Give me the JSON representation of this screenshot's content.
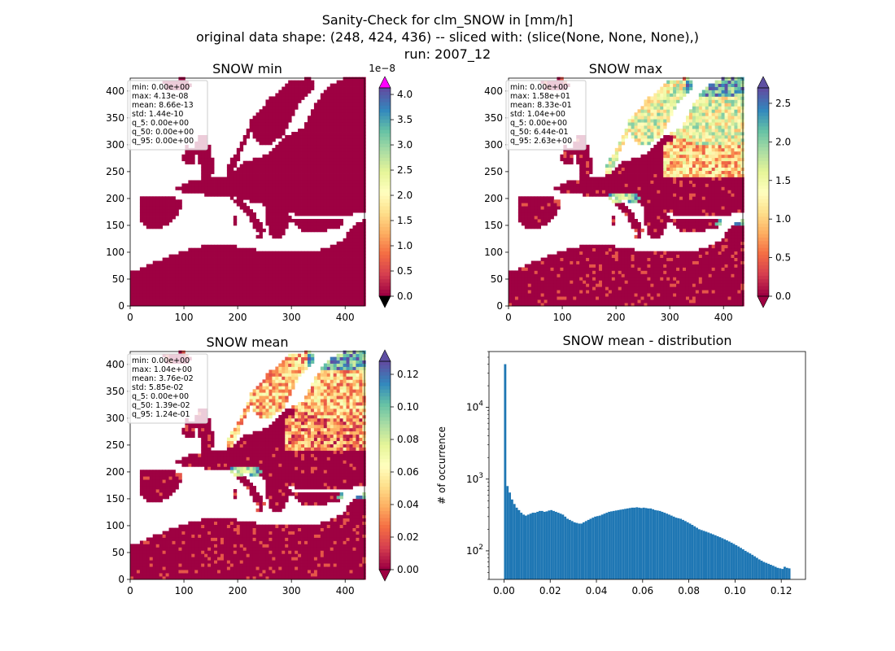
{
  "figure": {
    "title_lines": [
      "Sanity-Check for clm_SNOW in [mm/h]",
      "original data shape: (248, 424, 436) -- sliced with: (slice(None, None, None),)",
      "run: 2007_12"
    ]
  },
  "chart_data": [
    {
      "type": "heatmap",
      "title": "SNOW min",
      "xticks": [
        0,
        100,
        200,
        300,
        400
      ],
      "yticks": [
        0,
        50,
        100,
        150,
        200,
        250,
        300,
        350,
        400
      ],
      "xlim": [
        0,
        436
      ],
      "ylim": [
        0,
        424
      ],
      "colormap": "Spectral",
      "colorbar": {
        "ticks": [
          "0.0",
          "0.5",
          "1.0",
          "1.5",
          "2.0",
          "2.5",
          "3.0",
          "3.5",
          "4.0"
        ],
        "tick_values": [
          0,
          0.5,
          1,
          1.5,
          2,
          2.5,
          3,
          3.5,
          4
        ],
        "range": [
          0,
          4.13
        ],
        "offset_label": "1e−8",
        "extend": "both",
        "over_color": "#ff00ff",
        "under_color": "#000000"
      },
      "stats": [
        "min: 0.00e+00",
        "max: 4.13e-08",
        "mean: 8.66e-13",
        "std: 1.44e-10",
        "q_5: 0.00e+00",
        "q_50: 0.00e+00",
        "q_95: 0.00e+00"
      ]
    },
    {
      "type": "heatmap",
      "title": "SNOW max",
      "xticks": [
        0,
        100,
        200,
        300,
        400
      ],
      "yticks": [
        0,
        50,
        100,
        150,
        200,
        250,
        300,
        350,
        400
      ],
      "xlim": [
        0,
        436
      ],
      "ylim": [
        0,
        424
      ],
      "colormap": "Spectral",
      "colorbar": {
        "ticks": [
          "0.0",
          "0.5",
          "1.0",
          "1.5",
          "2.0",
          "2.5"
        ],
        "tick_values": [
          0,
          0.5,
          1,
          1.5,
          2,
          2.5
        ],
        "range": [
          0,
          2.7
        ],
        "extend": "both"
      },
      "stats": [
        "min: 0.00e+00",
        "max: 1.58e+01",
        "mean: 8.33e-01",
        "std: 1.04e+00",
        "q_5: 0.00e+00",
        "q_50: 6.44e-01",
        "q_95: 2.63e+00"
      ]
    },
    {
      "type": "heatmap",
      "title": "SNOW mean",
      "xticks": [
        0,
        100,
        200,
        300,
        400
      ],
      "yticks": [
        0,
        50,
        100,
        150,
        200,
        250,
        300,
        350,
        400
      ],
      "xlim": [
        0,
        436
      ],
      "ylim": [
        0,
        424
      ],
      "colormap": "Spectral",
      "colorbar": {
        "ticks": [
          "0.00",
          "0.02",
          "0.04",
          "0.06",
          "0.08",
          "0.10",
          "0.12"
        ],
        "tick_values": [
          0,
          0.02,
          0.04,
          0.06,
          0.08,
          0.1,
          0.12
        ],
        "range": [
          0,
          0.128
        ],
        "extend": "both"
      },
      "stats": [
        "min: 0.00e+00",
        "max: 1.04e+00",
        "mean: 3.76e-02",
        "std: 5.85e-02",
        "q_5: 0.00e+00",
        "q_50: 1.39e-02",
        "q_95: 1.24e-01"
      ]
    },
    {
      "type": "bar",
      "title": "SNOW mean - distribution",
      "xlabel": "",
      "ylabel": "# of occurrence",
      "yscale": "log",
      "xlim": [
        -0.0065,
        0.1305
      ],
      "ylim": [
        40,
        60000
      ],
      "xticks": [
        "0.00",
        "0.02",
        "0.04",
        "0.06",
        "0.08",
        "0.10",
        "0.12"
      ],
      "xtick_values": [
        0,
        0.02,
        0.04,
        0.06,
        0.08,
        0.1,
        0.12
      ],
      "yticks": [
        "10^2",
        "10^3",
        "10^4"
      ],
      "ytick_values": [
        100,
        1000,
        10000
      ],
      "bar_color": "#1f77b4",
      "bin_width": 0.001,
      "bin_start": 0,
      "values": [
        40000,
        800,
        650,
        520,
        450,
        400,
        370,
        340,
        320,
        310,
        320,
        330,
        340,
        340,
        350,
        360,
        360,
        350,
        355,
        365,
        370,
        360,
        350,
        340,
        330,
        320,
        300,
        280,
        270,
        260,
        250,
        245,
        240,
        240,
        250,
        260,
        270,
        280,
        290,
        300,
        305,
        310,
        320,
        330,
        340,
        350,
        355,
        360,
        365,
        370,
        375,
        380,
        385,
        390,
        395,
        400,
        400,
        405,
        400,
        395,
        400,
        395,
        390,
        390,
        380,
        370,
        365,
        360,
        350,
        340,
        330,
        320,
        310,
        300,
        290,
        285,
        280,
        270,
        260,
        250,
        240,
        230,
        220,
        210,
        200,
        195,
        190,
        185,
        180,
        175,
        170,
        165,
        160,
        155,
        150,
        145,
        140,
        135,
        130,
        125,
        120,
        115,
        110,
        105,
        100,
        96,
        92,
        88,
        84,
        80,
        76,
        73,
        70,
        68,
        66,
        64,
        62,
        60,
        58,
        57,
        56,
        60,
        58,
        57
      ]
    }
  ]
}
